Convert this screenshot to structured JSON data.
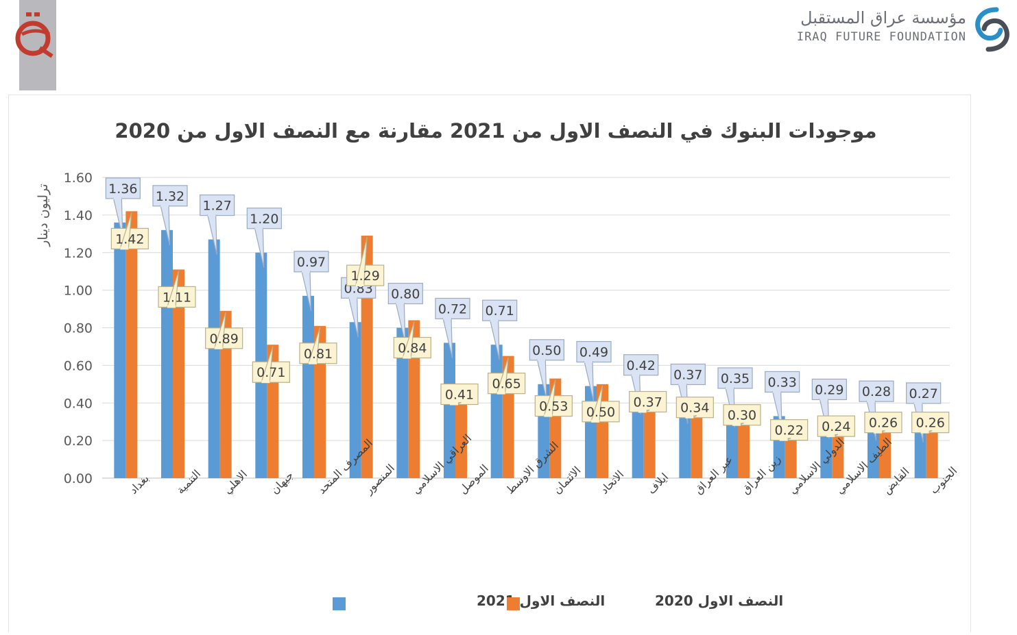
{
  "header": {
    "brand_ar": "مؤسسة عراق المستقبل",
    "brand_en": "IRAQ FUTURE FOUNDATION",
    "corner_logo_icon": "news-logo-icon",
    "brand_icon": "foundation-logo-icon"
  },
  "chart_data": {
    "type": "bar",
    "title": "موجودات البنوك في النصف الاول من 2021 مقارنة مع النصف الاول من 2020",
    "ylabel": "ترليون دينار",
    "xlabel": "",
    "ylim": [
      0,
      1.6
    ],
    "yticks": [
      "0.00",
      "0.20",
      "0.40",
      "0.60",
      "0.80",
      "1.00",
      "1.20",
      "1.40",
      "1.60"
    ],
    "grid": true,
    "legend_position": "bottom",
    "categories": [
      "بغداد",
      "التنمية",
      "الاهلي",
      "جيهان",
      "المصرف المتحد",
      "المنصور",
      "العراقي الاسلامي",
      "الموصل",
      "الشرق الاوسط",
      "الائتمان",
      "الاتحاد",
      "ايلاف",
      "عبر العراق",
      "زين العراق",
      "الدولي الاسلامي",
      "الطيف الاسلامي",
      "القابض",
      "الجنوب"
    ],
    "series": [
      {
        "name": "النصف الاول 2021",
        "color": "#5b9bd5",
        "values": [
          1.36,
          1.32,
          1.27,
          1.2,
          0.97,
          0.83,
          0.8,
          0.72,
          0.71,
          0.5,
          0.49,
          0.42,
          0.37,
          0.35,
          0.33,
          0.29,
          0.28,
          0.27
        ],
        "labels": [
          "1.36",
          "1.32",
          "1.27",
          "1.20",
          "0.97",
          "0.83",
          "0.80",
          "0.72",
          "0.71",
          "0.50",
          "0.49",
          "0.42",
          "0.37",
          "0.35",
          "0.33",
          "0.29",
          "0.28",
          "0.27"
        ]
      },
      {
        "name": "النصف الاول 2020",
        "color": "#ed7d31",
        "values": [
          1.42,
          1.11,
          0.89,
          0.71,
          0.81,
          1.29,
          0.84,
          0.41,
          0.65,
          0.53,
          0.5,
          0.37,
          0.34,
          0.3,
          0.22,
          0.24,
          0.26,
          0.26
        ],
        "labels": [
          "1.42",
          "1.11",
          "0.89",
          "0.71",
          "0.81",
          "1.29",
          "0.84",
          "0.41",
          "0.65",
          "0.53",
          "0.50",
          "0.37",
          "0.34",
          "0.30",
          "0.22",
          "0.24",
          "0.26",
          "0.26"
        ]
      }
    ]
  }
}
